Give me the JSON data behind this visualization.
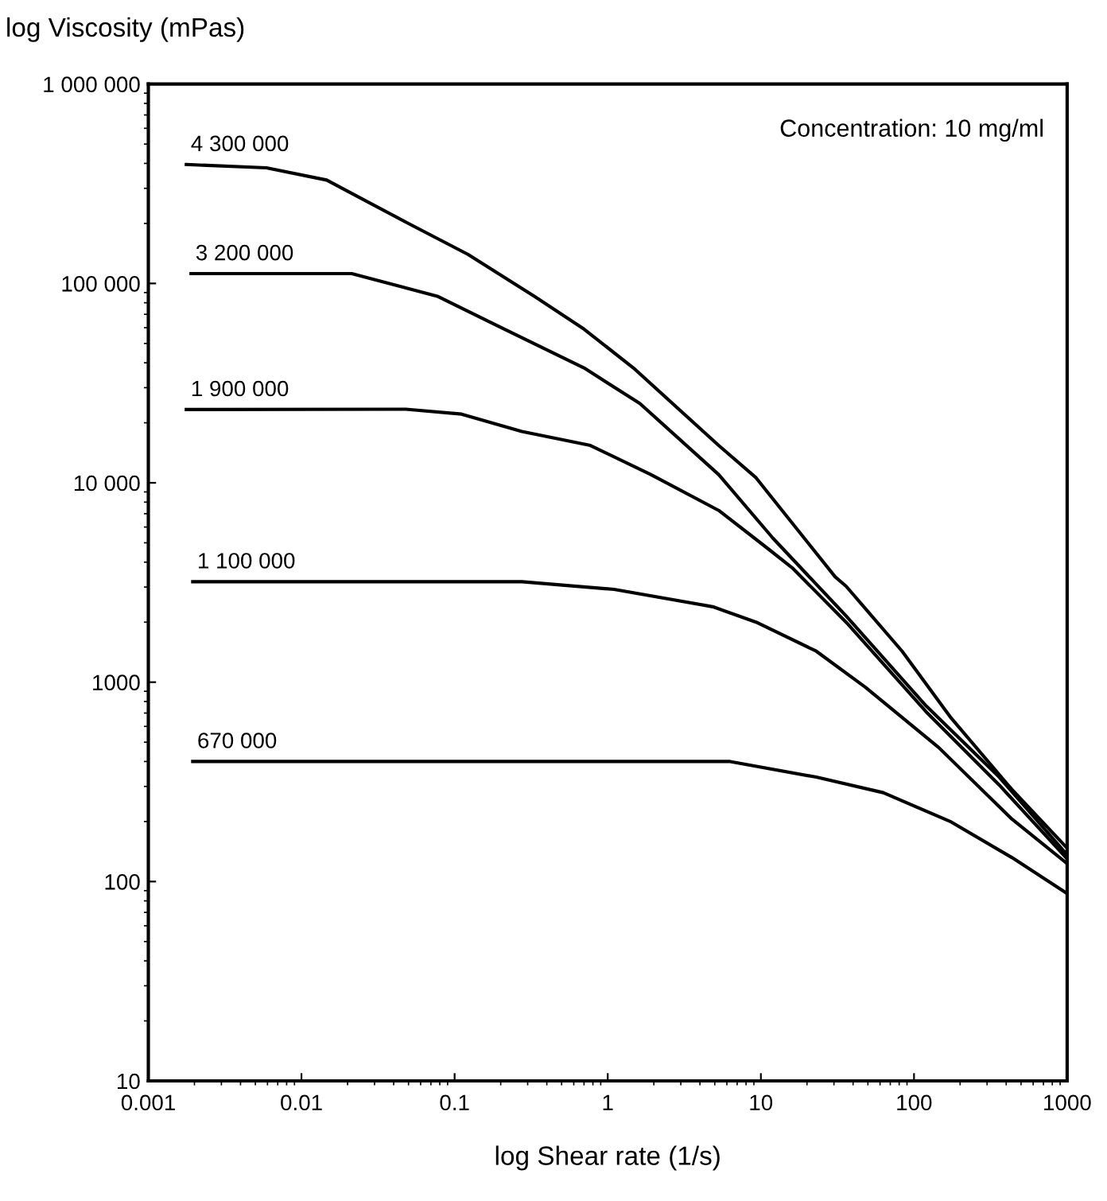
{
  "chart_data": {
    "type": "line",
    "ylabel": "log Viscosity (mPas)",
    "xlabel": "log Shear rate (1/s)",
    "log": "xy",
    "annotations": [
      "Concentration: 10 mg/ml"
    ],
    "xlim": [
      0.001,
      1000
    ],
    "xticks": [
      0.001,
      0.01,
      0.1,
      1,
      10,
      100,
      1000
    ],
    "ylim": [
      10,
      1000000
    ],
    "yticks": [
      {
        "value": 10,
        "label": "10"
      },
      {
        "value": 100,
        "label": "100"
      },
      {
        "value": 1000,
        "label": "1000"
      },
      {
        "value": 10000,
        "label": "10 000"
      },
      {
        "value": 100000,
        "label": "100 000"
      },
      {
        "value": 1000000,
        "label": "1 000 000"
      }
    ],
    "grid": false,
    "legend": false,
    "marker": "none",
    "line_style": "solid",
    "series": [
      {
        "name": "4 300 000",
        "color": "#000000",
        "x": [
          0.00177,
          0.0059,
          0.0146,
          0.048,
          0.122,
          0.333,
          0.7,
          1.47,
          5.3,
          9.3,
          30.6,
          36,
          83.6,
          175,
          435,
          1000
        ],
        "values": [
          395000,
          380000,
          330000,
          203000,
          140000,
          86000,
          59000,
          37700,
          15400,
          10600,
          3370,
          3030,
          1430,
          660,
          290,
          147
        ]
      },
      {
        "name": "3 200 000",
        "color": "#000000",
        "x": [
          0.0019,
          0.0213,
          0.078,
          0.193,
          0.7,
          1.62,
          5.3,
          12,
          36,
          120,
          360,
          1000
        ],
        "values": [
          112000,
          112000,
          86000,
          61000,
          37700,
          25000,
          11000,
          5270,
          2150,
          760,
          334,
          136
        ]
      },
      {
        "name": "1 900 000",
        "color": "#000000",
        "x": [
          0.00177,
          0.048,
          0.111,
          0.275,
          0.77,
          1.91,
          5.3,
          10.9,
          16,
          36,
          120,
          360,
          1000
        ],
        "values": [
          23300,
          23400,
          22100,
          18100,
          15400,
          11000,
          7270,
          4730,
          3750,
          2000,
          710,
          305,
          130
        ]
      },
      {
        "name": "1 100 000",
        "color": "#000000",
        "x": [
          0.00195,
          0.275,
          1.1,
          4.85,
          9.3,
          23,
          48,
          145,
          435,
          1000
        ],
        "values": [
          3190,
          3190,
          2920,
          2390,
          2000,
          1430,
          945,
          470,
          206,
          123
        ]
      },
      {
        "name": "670 000",
        "color": "#000000",
        "x": [
          0.00195,
          6.3,
          23,
          63,
          175,
          435,
          1000
        ],
        "values": [
          400,
          400,
          334,
          279,
          199,
          132,
          87
        ]
      }
    ]
  }
}
